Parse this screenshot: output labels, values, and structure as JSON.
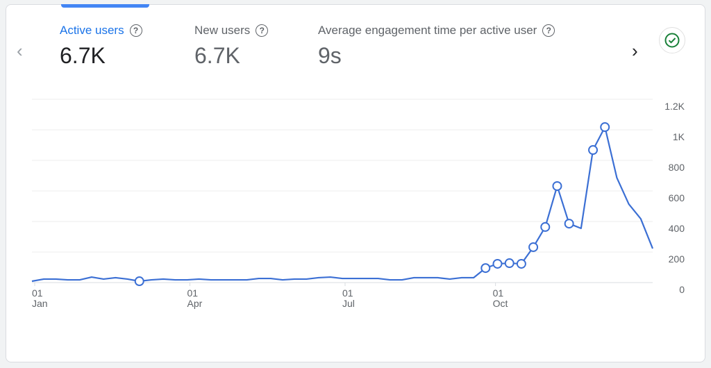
{
  "metrics": [
    {
      "label": "Active users",
      "value": "6.7K",
      "active": true
    },
    {
      "label": "New users",
      "value": "6.7K"
    },
    {
      "label": "Average engagement time per active user",
      "value": "9s"
    }
  ],
  "nav": {
    "prev": "‹",
    "next": "›"
  },
  "status_icon": "check-circle-icon",
  "colors": {
    "accent": "#1a73e8",
    "line": "#3b6fd4",
    "check": "#188038"
  },
  "chart_data": {
    "type": "line",
    "title": "Active users",
    "ylim": [
      0,
      1200
    ],
    "y_ticks": [
      {
        "v": 0,
        "label": "0"
      },
      {
        "v": 200,
        "label": "200"
      },
      {
        "v": 400,
        "label": "400"
      },
      {
        "v": 600,
        "label": "600"
      },
      {
        "v": 800,
        "label": "800"
      },
      {
        "v": 1000,
        "label": "1K"
      },
      {
        "v": 1200,
        "label": "1.2K"
      }
    ],
    "x_ticks": [
      {
        "i": 0,
        "day": "01",
        "month": "Jan"
      },
      {
        "i": 13,
        "day": "01",
        "month": "Apr"
      },
      {
        "i": 26,
        "day": "01",
        "month": "Jul"
      },
      {
        "i": 38.6,
        "day": "01",
        "month": "Oct"
      }
    ],
    "values": [
      9,
      23,
      23,
      18,
      18,
      36,
      23,
      32,
      23,
      9,
      18,
      23,
      18,
      18,
      23,
      18,
      18,
      18,
      18,
      27,
      27,
      18,
      23,
      23,
      32,
      36,
      27,
      27,
      27,
      27,
      18,
      18,
      32,
      32,
      32,
      23,
      32,
      32,
      95,
      123,
      127,
      123,
      232,
      364,
      632,
      386,
      355,
      868,
      1018,
      686,
      514,
      418,
      223
    ],
    "markers": [
      9,
      38,
      39,
      40,
      41,
      42,
      43,
      44,
      45,
      47,
      48
    ],
    "grid": true
  }
}
